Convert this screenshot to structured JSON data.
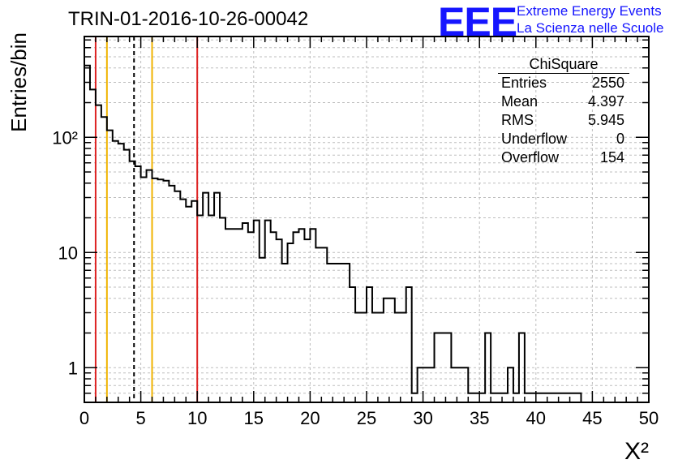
{
  "title": "TRIN-01-2016-10-26-00042",
  "logo": {
    "mark": "EEE",
    "line1": "Extreme Energy Events",
    "line2": "La Scienza nelle Scuole",
    "color": "#1515ff"
  },
  "stats": {
    "name": "ChiSquare",
    "rows": [
      {
        "label": "Entries",
        "value": "2550"
      },
      {
        "label": "Mean",
        "value": "4.397"
      },
      {
        "label": "RMS",
        "value": "5.945"
      },
      {
        "label": "Underflow",
        "value": "0"
      },
      {
        "label": "Overflow",
        "value": "154"
      }
    ]
  },
  "chart_data": {
    "type": "histogram",
    "xlabel": "X²",
    "ylabel": "Entries/bin",
    "xlim": [
      0,
      50
    ],
    "ylim": [
      0.5,
      750
    ],
    "ylog": true,
    "grid": true,
    "bin_width": 0.5,
    "x_ticks": [
      "0",
      "5",
      "10",
      "15",
      "20",
      "25",
      "30",
      "35",
      "40",
      "45",
      "50"
    ],
    "y_ticks": [
      {
        "value": 1,
        "label": "1"
      },
      {
        "value": 10,
        "label": "10"
      },
      {
        "value": 100,
        "label": "10²"
      }
    ],
    "values": [
      420,
      260,
      190,
      150,
      115,
      93,
      88,
      78,
      62,
      56,
      45,
      52,
      44,
      43,
      42,
      38,
      34,
      29,
      25,
      28,
      21,
      33,
      21,
      33,
      20,
      16,
      16,
      16,
      18,
      15,
      19,
      9,
      19,
      15,
      13,
      8,
      12,
      15,
      16,
      13,
      16,
      11,
      11,
      8,
      8,
      8,
      8,
      5,
      3,
      3,
      5,
      3,
      3,
      4,
      4,
      3,
      3,
      5,
      0.6,
      1,
      1,
      1,
      2,
      2,
      2,
      1,
      1,
      1,
      0.6,
      0.6,
      0.6,
      2,
      0.6,
      0.6,
      0.6,
      1,
      0.6,
      2,
      0.6,
      0.6,
      0.6,
      0.6,
      0.6,
      0.6,
      0.6,
      0.6,
      0.6,
      0.6
    ],
    "vertical_lines": [
      {
        "x": 1.0,
        "color": "#dd2222",
        "style": "solid"
      },
      {
        "x": 2.0,
        "color": "#f0b400",
        "style": "solid"
      },
      {
        "x": 4.4,
        "color": "#000000",
        "style": "dashed"
      },
      {
        "x": 6.0,
        "color": "#f0b400",
        "style": "solid"
      },
      {
        "x": 10.0,
        "color": "#dd2222",
        "style": "solid"
      }
    ]
  }
}
